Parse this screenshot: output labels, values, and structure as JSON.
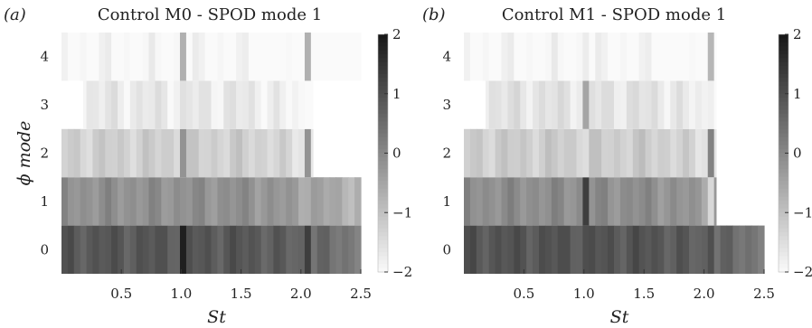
{
  "chart_data": [
    {
      "type": "heatmap",
      "panel_tag": "(a)",
      "title": "Control M0 - SPOD mode 1",
      "xlabel": "St",
      "ylabel": "ϕ mode",
      "xlim": [
        0,
        2.5
      ],
      "ylim": [
        -0.5,
        4.5
      ],
      "x_ticks": [
        "0.5",
        "1.0",
        "1.5",
        "2.0",
        "2.5"
      ],
      "y_ticks": [
        "0",
        "1",
        "2",
        "3",
        "4"
      ],
      "colorbar": {
        "range": [
          -2,
          2
        ],
        "ticks": [
          "2",
          "1",
          "0",
          "−1",
          "−2"
        ]
      },
      "rows": [
        {
          "mode": 0,
          "x_range": [
            0.0,
            2.5
          ],
          "base": 0.85,
          "peaks": [
            {
              "st": 1.02,
              "value": 1.85
            },
            {
              "st": 2.04,
              "value": 1.3
            }
          ]
        },
        {
          "mode": 1,
          "x_range": [
            0.0,
            2.5
          ],
          "base": -0.15,
          "peaks": []
        },
        {
          "mode": 2,
          "x_range": [
            0.0,
            2.1
          ],
          "base": -1.25,
          "peaks": [
            {
              "st": 1.02,
              "value": -0.2
            },
            {
              "st": 2.04,
              "value": -0.2
            }
          ]
        },
        {
          "mode": 3,
          "x_range": [
            0.18,
            2.1
          ],
          "base": -1.7,
          "peaks": []
        },
        {
          "mode": 4,
          "x_range": [
            0.0,
            2.5
          ],
          "base": -2.0,
          "peaks": [
            {
              "st": 1.02,
              "value": -0.7
            },
            {
              "st": 2.04,
              "value": -0.7
            }
          ]
        }
      ]
    },
    {
      "type": "heatmap",
      "panel_tag": "(b)",
      "title": "Control M1 - SPOD mode 1",
      "xlabel": "St",
      "ylabel": "",
      "xlim": [
        0,
        2.5
      ],
      "ylim": [
        -0.5,
        4.5
      ],
      "x_ticks": [
        "0.5",
        "1.0",
        "1.5",
        "2.0",
        "2.5"
      ],
      "y_ticks": [
        "0",
        "1",
        "2",
        "3",
        "4"
      ],
      "colorbar": {
        "range": [
          -2,
          2
        ],
        "ticks": [
          "2",
          "1",
          "0",
          "−1",
          "−2"
        ]
      },
      "rows": [
        {
          "mode": 0,
          "x_range": [
            0.0,
            2.5
          ],
          "base": 0.9,
          "peaks": [
            {
              "st": 2.04,
              "value": 1.0
            }
          ]
        },
        {
          "mode": 1,
          "x_range": [
            0.0,
            2.1
          ],
          "base": -0.1,
          "peaks": [
            {
              "st": 1.02,
              "value": 1.3
            },
            {
              "st": 2.04,
              "value": -1.4
            }
          ]
        },
        {
          "mode": 2,
          "x_range": [
            0.0,
            2.1
          ],
          "base": -1.2,
          "peaks": [
            {
              "st": 1.02,
              "value": -1.5
            },
            {
              "st": 2.04,
              "value": 0.1
            }
          ]
        },
        {
          "mode": 3,
          "x_range": [
            0.18,
            2.1
          ],
          "base": -1.6,
          "peaks": [
            {
              "st": 1.02,
              "value": -0.5
            },
            {
              "st": 2.04,
              "value": -1.8
            }
          ]
        },
        {
          "mode": 4,
          "x_range": [
            0.0,
            2.1
          ],
          "base": -2.0,
          "peaks": [
            {
              "st": 1.02,
              "value": -1.75
            },
            {
              "st": 2.04,
              "value": -0.8
            }
          ]
        }
      ]
    }
  ]
}
